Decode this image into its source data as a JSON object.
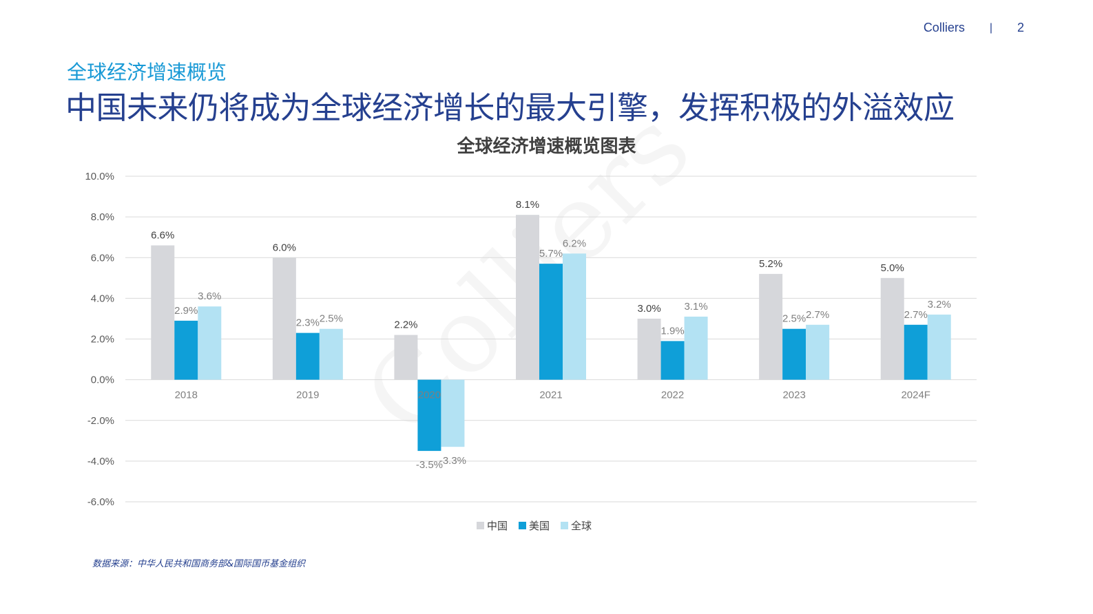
{
  "header": {
    "brand": "Colliers",
    "separator": "|",
    "page_number": "2"
  },
  "subtitle": "全球经济增速概览",
  "headline": "中国未来仍将成为全球经济增长的最大引擎，发挥积极的外溢效应",
  "watermark": "Colliers",
  "source": "数据来源：中华人民共和国商务部&国际国币基金组织",
  "colors": {
    "china": "#d6d7db",
    "usa": "#0f9fd8",
    "global": "#b3e2f3",
    "grid": "#d9d9d9"
  },
  "chart_data": {
    "type": "bar",
    "title": "全球经济增速概览图表",
    "categories": [
      "2018",
      "2019",
      "2020",
      "2021",
      "2022",
      "2023",
      "2024F"
    ],
    "series": [
      {
        "name": "中国",
        "values": [
          6.6,
          6.0,
          2.2,
          8.1,
          3.0,
          5.2,
          5.0
        ],
        "labels": [
          "6.6%",
          "6.0%",
          "2.2%",
          "8.1%",
          "3.0%",
          "5.2%",
          "5.0%"
        ]
      },
      {
        "name": "美国",
        "values": [
          2.9,
          2.3,
          -3.5,
          5.7,
          1.9,
          2.5,
          2.7
        ],
        "labels": [
          "2.9%",
          "2.3%",
          "-3.5%",
          "5.7%",
          "1.9%",
          "2.5%",
          "2.7%"
        ]
      },
      {
        "name": "全球",
        "values": [
          3.6,
          2.5,
          -3.3,
          6.2,
          3.1,
          2.7,
          3.2
        ],
        "labels": [
          "3.6%",
          "2.5%",
          "-3.3%",
          "6.2%",
          "3.1%",
          "2.7%",
          "3.2%"
        ]
      }
    ],
    "ylim": [
      -6,
      10
    ],
    "yticks": [
      10,
      8,
      6,
      4,
      2,
      0,
      -2,
      -4,
      -6
    ],
    "ytick_labels": [
      "10.0%",
      "8.0%",
      "6.0%",
      "4.0%",
      "2.0%",
      "0.0%",
      "-2.0%",
      "-4.0%",
      "-6.0%"
    ],
    "xlabel": "",
    "ylabel": "",
    "grid": true,
    "legend": "bottom"
  }
}
